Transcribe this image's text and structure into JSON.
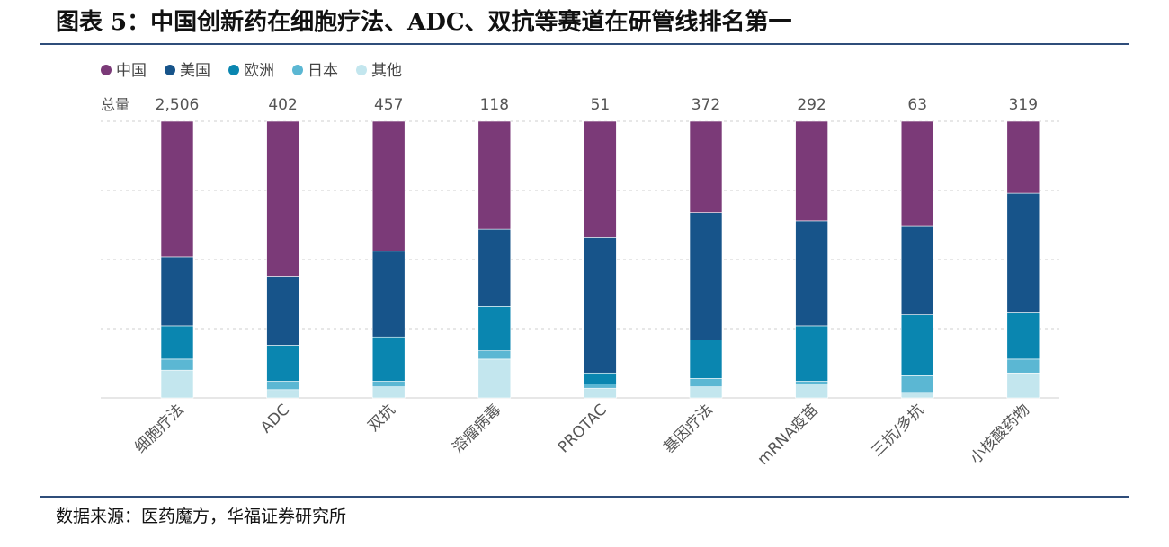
{
  "header": {
    "title": "图表 5：中国创新药在细胞疗法、ADC、双抗等赛道在研管线排名第一"
  },
  "footer": {
    "source": "数据来源：医药魔方，华福证券研究所"
  },
  "chart_data": {
    "type": "bar",
    "stacked": true,
    "normalized": "percent",
    "total_label": "总量",
    "categories": [
      "细胞疗法",
      "ADC",
      "双抗",
      "溶瘤病毒",
      "PROTAC",
      "基因疗法",
      "mRNA疫苗",
      "三抗/多抗",
      "小核酸药物"
    ],
    "totals": [
      "2,506",
      "402",
      "457",
      "118",
      "51",
      "372",
      "292",
      "63",
      "319"
    ],
    "series": [
      {
        "name": "中国",
        "color": "#7b3a78",
        "values": [
          49,
          56,
          47,
          39,
          42,
          33,
          36,
          38,
          26
        ]
      },
      {
        "name": "美国",
        "color": "#17548a",
        "values": [
          25,
          25,
          31,
          28,
          49,
          46,
          38,
          32,
          43
        ]
      },
      {
        "name": "欧洲",
        "color": "#0a86b0",
        "values": [
          12,
          13,
          16,
          16,
          4,
          14,
          20,
          22,
          17
        ]
      },
      {
        "name": "日本",
        "color": "#5bb7d3",
        "values": [
          4,
          3,
          2,
          3,
          1.5,
          3,
          1,
          6,
          5
        ]
      },
      {
        "name": "其他",
        "color": "#c3e6ee",
        "values": [
          10,
          3,
          4,
          14,
          3.5,
          4,
          5,
          2,
          9
        ]
      }
    ],
    "ylim": [
      0,
      100
    ],
    "grid": true,
    "legend_position": "top-left"
  }
}
